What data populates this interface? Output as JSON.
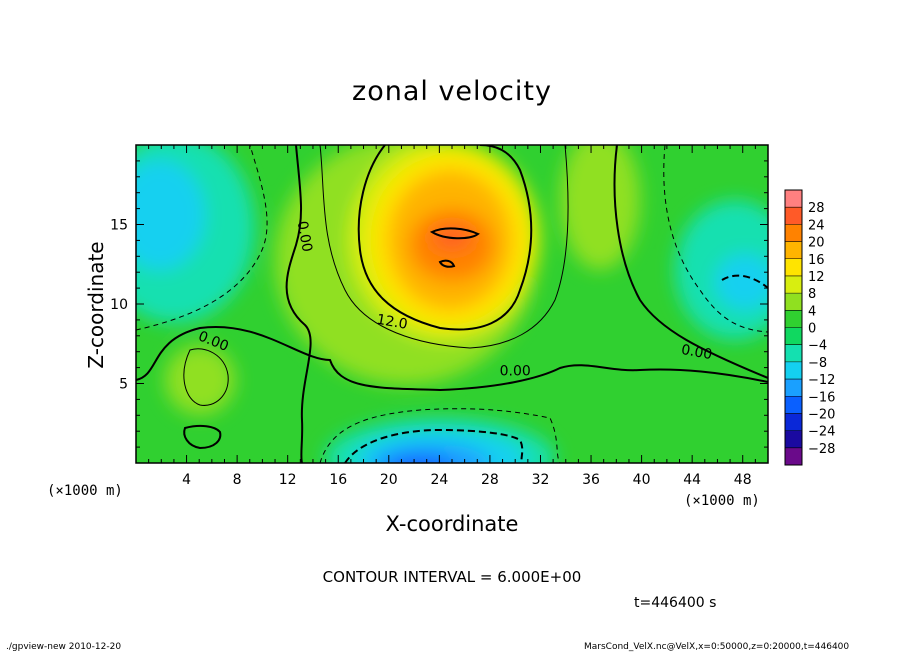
{
  "chart_data": {
    "type": "heatmap",
    "title": "zonal velocity",
    "xlabel": "X-coordinate",
    "ylabel": "Z-coordinate",
    "x_unit_label": "(×1000 m)",
    "xlim": [
      0,
      50
    ],
    "ylim": [
      0,
      20
    ],
    "x_ticks": [
      "4",
      "8",
      "12",
      "16",
      "20",
      "24",
      "28",
      "32",
      "36",
      "40",
      "44",
      "48"
    ],
    "x_tick_values": [
      4,
      8,
      12,
      16,
      20,
      24,
      28,
      32,
      36,
      40,
      44,
      48
    ],
    "y_ticks": [
      "5",
      "10",
      "15"
    ],
    "y_tick_values": [
      5,
      10,
      15
    ],
    "colorbar": {
      "levels": [
        -32,
        -28,
        -24,
        -20,
        -16,
        -12,
        -8,
        -4,
        0,
        4,
        8,
        12,
        16,
        20,
        24,
        28,
        32
      ],
      "labels": [
        "28",
        "24",
        "20",
        "16",
        "12",
        "8",
        "4",
        "0",
        "−4",
        "−8",
        "−12",
        "−16",
        "−20",
        "−24",
        "−28"
      ],
      "colors": [
        "#6a0a8a",
        "#1a0aa0",
        "#0a28d8",
        "#0a60ff",
        "#1aa0ff",
        "#14d0f0",
        "#14e0b0",
        "#10d860",
        "#30d030",
        "#90e020",
        "#d8ee10",
        "#ffe400",
        "#ffb400",
        "#ff8200",
        "#ff5a28",
        "#ff8080"
      ]
    },
    "contour_labels": [
      {
        "text": "0.00",
        "x": 13.0,
        "z": 14.2,
        "rotate": 80
      },
      {
        "text": "12.0",
        "x": 20.2,
        "z": 8.6,
        "rotate": 10
      },
      {
        "text": "0.00",
        "x": 6.0,
        "z": 7.4,
        "rotate": 22
      },
      {
        "text": "0.00",
        "x": 30.0,
        "z": 5.5,
        "rotate": 0
      },
      {
        "text": "0.00",
        "x": 44.3,
        "z": 6.7,
        "rotate": 10
      }
    ],
    "contour_interval_text": "CONTOUR INTERVAL = 6.000E+00",
    "time_text": "t=446400 s"
  },
  "footer": {
    "left": "./gpview-new  2010-12-20",
    "right": "MarsCond_VelX.nc@VelX,x=0:50000,z=0:20000,t=446400"
  }
}
